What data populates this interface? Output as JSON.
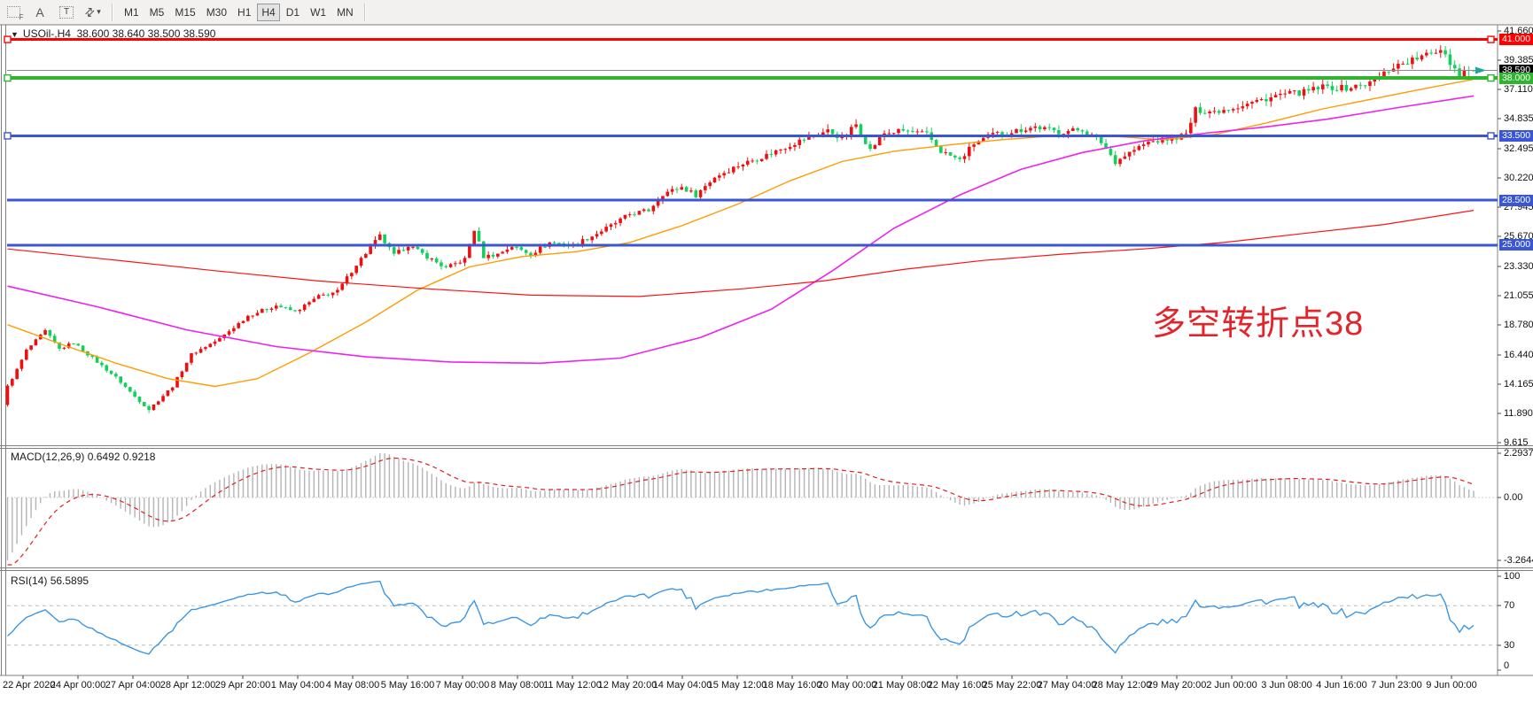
{
  "toolbar": {
    "tools": [
      {
        "id": "snap-grid",
        "label": "F"
      },
      {
        "id": "font",
        "label": "A"
      },
      {
        "id": "text-box",
        "label": "T"
      },
      {
        "id": "cursor-mode",
        "label": "⇄"
      },
      {
        "id": "cursor-dropdown",
        "label": "▾"
      }
    ],
    "timeframes": [
      "M1",
      "M5",
      "M15",
      "M30",
      "H1",
      "H4",
      "D1",
      "W1",
      "MN"
    ],
    "active_timeframe": "H4"
  },
  "window": {
    "title_symbol": "USOil-,H4",
    "title_ohlc": "38.600 38.640 38.500 38.590",
    "dropdown_glyph": "▼"
  },
  "annotation": {
    "text": "多空转折点38",
    "color": "#e3242b"
  },
  "price_axis": {
    "ticks": [
      41.66,
      39.385,
      37.11,
      34.835,
      32.495,
      30.22,
      27.945,
      25.67,
      23.33,
      21.055,
      18.78,
      16.44,
      14.165,
      11.89,
      9.615
    ],
    "current_badge": "38.590",
    "current_badge_color": "#000000"
  },
  "time_axis": {
    "labels": [
      "22 Apr 2020",
      "24 Apr 00:00",
      "27 Apr 04:00",
      "28 Apr 12:00",
      "29 Apr 20:00",
      "1 May 04:00",
      "4 May 08:00",
      "5 May 16:00",
      "7 May 00:00",
      "8 May 08:00",
      "11 May 12:00",
      "12 May 20:00",
      "14 May 04:00",
      "15 May 12:00",
      "18 May 16:00",
      "20 May 00:00",
      "21 May 08:00",
      "22 May 16:00",
      "25 May 22:00",
      "27 May 04:00",
      "28 May 12:00",
      "29 May 20:00",
      "2 Jun 00:00",
      "3 Jun 08:00",
      "4 Jun 16:00",
      "7 Jun 23:00",
      "9 Jun 00:00"
    ]
  },
  "hlines": [
    {
      "price": 41.0,
      "label": "41.000",
      "color": "#ff0000",
      "width": 3,
      "selected": true
    },
    {
      "price": 38.0,
      "label": "38.000",
      "color": "#2db52d",
      "width": 4,
      "selected": true
    },
    {
      "price": 33.5,
      "label": "33.500",
      "color": "#3a56d4",
      "width": 3,
      "selected": true
    },
    {
      "price": 28.5,
      "label": "28.500",
      "color": "#3a56d4",
      "width": 3,
      "selected": false
    },
    {
      "price": 25.0,
      "label": "25.000",
      "color": "#3a56d4",
      "width": 3,
      "selected": false
    }
  ],
  "chart_data": {
    "type": "candlestick",
    "symbol": "USOil-",
    "timeframe": "H4",
    "current_price": 38.59,
    "current_price_line_color": "#8a8a8a",
    "last_candle": {
      "open": 38.6,
      "high": 38.64,
      "low": 38.5,
      "close": 38.59
    },
    "price_range_visible": [
      9.615,
      41.66
    ],
    "time_range_visible": [
      "22 Apr 2020",
      "9 Jun 00:00"
    ],
    "bars_visible": 312,
    "up_color": "#ee1010",
    "down_color": "#12d05c",
    "marker_color": "#1aa79c",
    "close_path_anchors": [
      [
        -70,
        30.0
      ],
      [
        -55,
        28.0
      ],
      [
        -40,
        25.0
      ],
      [
        -25,
        21.0
      ],
      [
        -12,
        15.0
      ],
      [
        -4,
        10.9
      ],
      [
        -1,
        12.6
      ],
      [
        0,
        14.0
      ],
      [
        2,
        15.3
      ],
      [
        4,
        16.8
      ],
      [
        8,
        18.3
      ],
      [
        11,
        16.9
      ],
      [
        14,
        17.4
      ],
      [
        18,
        16.2
      ],
      [
        23,
        14.7
      ],
      [
        27,
        13.2
      ],
      [
        30,
        12.2
      ],
      [
        35,
        14.0
      ],
      [
        39,
        16.5
      ],
      [
        45,
        17.7
      ],
      [
        51,
        19.5
      ],
      [
        57,
        20.3
      ],
      [
        61,
        19.8
      ],
      [
        66,
        21.0
      ],
      [
        70,
        21.4
      ],
      [
        74,
        23.5
      ],
      [
        79,
        25.7
      ],
      [
        82,
        24.2
      ],
      [
        85,
        25.0
      ],
      [
        89,
        24.1
      ],
      [
        93,
        23.2
      ],
      [
        97,
        23.9
      ],
      [
        99,
        26.2
      ],
      [
        101,
        24.1
      ],
      [
        104,
        24.3
      ],
      [
        107,
        24.9
      ],
      [
        111,
        24.3
      ],
      [
        115,
        25.2
      ],
      [
        120,
        25.0
      ],
      [
        124,
        25.7
      ],
      [
        128,
        26.5
      ],
      [
        132,
        27.4
      ],
      [
        136,
        27.7
      ],
      [
        139,
        29.0
      ],
      [
        143,
        29.5
      ],
      [
        146,
        28.9
      ],
      [
        150,
        30.3
      ],
      [
        155,
        31.2
      ],
      [
        161,
        32.0
      ],
      [
        166,
        32.8
      ],
      [
        170,
        33.4
      ],
      [
        174,
        33.9
      ],
      [
        177,
        33.3
      ],
      [
        180,
        34.4
      ],
      [
        183,
        32.4
      ],
      [
        186,
        33.7
      ],
      [
        190,
        33.9
      ],
      [
        195,
        33.6
      ],
      [
        198,
        32.3
      ],
      [
        202,
        31.6
      ],
      [
        205,
        32.9
      ],
      [
        209,
        33.6
      ],
      [
        214,
        33.9
      ],
      [
        218,
        34.2
      ],
      [
        223,
        33.8
      ],
      [
        228,
        34.0
      ],
      [
        232,
        33.0
      ],
      [
        235,
        31.5
      ],
      [
        238,
        32.2
      ],
      [
        242,
        33.0
      ],
      [
        247,
        33.3
      ],
      [
        250,
        33.6
      ],
      [
        252,
        35.5
      ],
      [
        256,
        35.4
      ],
      [
        261,
        35.8
      ],
      [
        265,
        36.2
      ],
      [
        270,
        36.7
      ],
      [
        275,
        36.9
      ],
      [
        279,
        37.3
      ],
      [
        284,
        37.2
      ],
      [
        289,
        37.6
      ],
      [
        294,
        38.9
      ],
      [
        298,
        39.4
      ],
      [
        302,
        39.9
      ],
      [
        304,
        40.3
      ],
      [
        305,
        39.9
      ],
      [
        306,
        39.2
      ],
      [
        308,
        38.3
      ],
      [
        309,
        38.6
      ],
      [
        310,
        38.55
      ],
      [
        311,
        38.59
      ]
    ],
    "extremes": {
      "low_bar": 30,
      "low": 11.93,
      "high_bar": 304,
      "high": 40.55
    },
    "moving_averages": [
      {
        "name": "ma-fast",
        "color": "#ff9c00",
        "width": 1.4,
        "points": [
          [
            0,
            18.8
          ],
          [
            12,
            17.2
          ],
          [
            23,
            15.8
          ],
          [
            34,
            14.6
          ],
          [
            44,
            14.0
          ],
          [
            53,
            14.6
          ],
          [
            64,
            16.6
          ],
          [
            76,
            19.0
          ],
          [
            87,
            21.5
          ],
          [
            98,
            23.3
          ],
          [
            109,
            24.1
          ],
          [
            121,
            24.5
          ],
          [
            132,
            25.2
          ],
          [
            143,
            26.5
          ],
          [
            155,
            28.2
          ],
          [
            166,
            30.0
          ],
          [
            177,
            31.5
          ],
          [
            188,
            32.3
          ],
          [
            200,
            32.8
          ],
          [
            211,
            33.2
          ],
          [
            222,
            33.5
          ],
          [
            233,
            33.5
          ],
          [
            245,
            33.2
          ],
          [
            256,
            33.6
          ],
          [
            267,
            34.5
          ],
          [
            279,
            35.6
          ],
          [
            290,
            36.4
          ],
          [
            301,
            37.2
          ],
          [
            311,
            37.9
          ]
        ]
      },
      {
        "name": "ma-medium",
        "color": "#ee22ee",
        "width": 1.6,
        "points": [
          [
            0,
            21.8
          ],
          [
            19,
            20.2
          ],
          [
            38,
            18.4
          ],
          [
            57,
            17.1
          ],
          [
            76,
            16.3
          ],
          [
            94,
            15.9
          ],
          [
            113,
            15.8
          ],
          [
            130,
            16.2
          ],
          [
            147,
            17.8
          ],
          [
            162,
            20.0
          ],
          [
            175,
            23.0
          ],
          [
            188,
            26.3
          ],
          [
            202,
            28.9
          ],
          [
            215,
            30.9
          ],
          [
            228,
            32.2
          ],
          [
            241,
            33.1
          ],
          [
            254,
            33.7
          ],
          [
            267,
            34.2
          ],
          [
            280,
            34.8
          ],
          [
            295,
            35.7
          ],
          [
            311,
            36.6
          ]
        ]
      },
      {
        "name": "ma-slow",
        "color": "#ff1111",
        "width": 1.2,
        "points": [
          [
            0,
            24.7
          ],
          [
            21,
            23.9
          ],
          [
            44,
            23.0
          ],
          [
            66,
            22.2
          ],
          [
            89,
            21.6
          ],
          [
            111,
            21.1
          ],
          [
            134,
            21.0
          ],
          [
            156,
            21.6
          ],
          [
            173,
            22.2
          ],
          [
            190,
            23.1
          ],
          [
            207,
            23.8
          ],
          [
            224,
            24.3
          ],
          [
            241,
            24.7
          ],
          [
            258,
            25.2
          ],
          [
            275,
            25.9
          ],
          [
            292,
            26.6
          ],
          [
            311,
            27.7
          ]
        ]
      }
    ],
    "indicators": {
      "macd": {
        "title": "MACD(12,26,9)",
        "values_text": "0.6492 0.9218",
        "fast": 12,
        "slow": 26,
        "signal": 9,
        "axis_max": 2.2937,
        "axis_mid": 0.0,
        "axis_min": -3.2644,
        "axis_labels": [
          "2.2937",
          "0.00",
          "-3.2644"
        ],
        "histogram_color": "#b4b4b4",
        "signal_color": "#e02020"
      },
      "rsi": {
        "title": "RSI(14)",
        "period": 14,
        "value_text": "56.5895",
        "axis_labels": [
          "100",
          "70",
          "30",
          "0"
        ],
        "levels": [
          70,
          30
        ],
        "line_color": "#3b97e3",
        "level_color": "#bbbbbb"
      }
    }
  }
}
